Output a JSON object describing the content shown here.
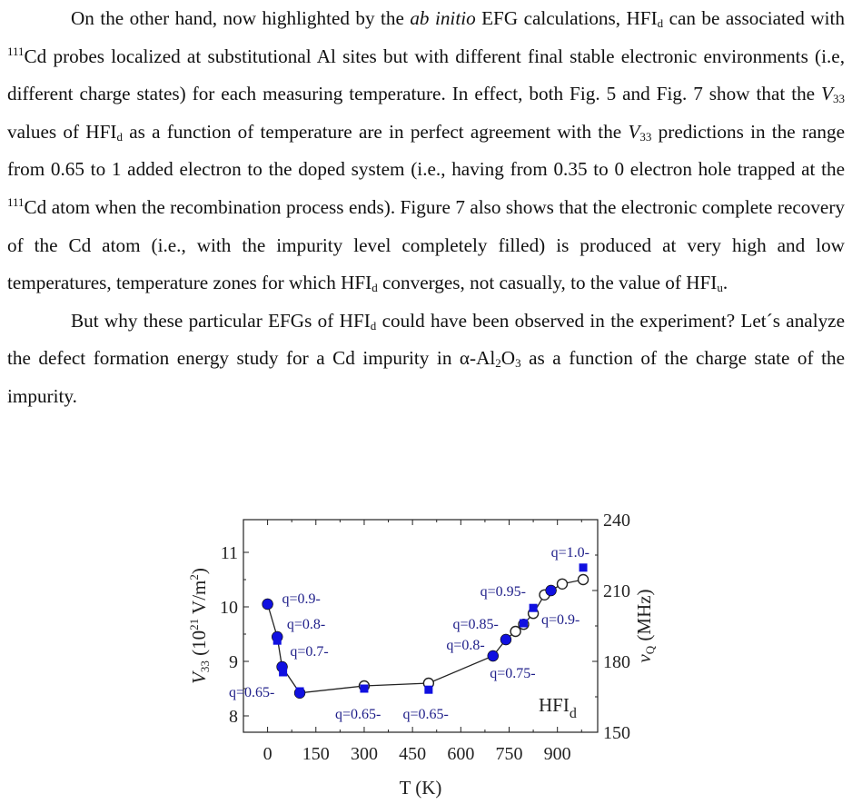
{
  "paragraph1": {
    "s1": "On the other hand, now highlighted by the ",
    "s2": "ab initio",
    "s3": " EFG calculations, HFI",
    "s4": "d",
    "s5": " can be associated with ",
    "s6": "111",
    "s7": "Cd probes localized at substitutional Al sites but with different final stable electronic environments (i.e, different charge states) for each measuring temperature. In effect, both Fig. 5 and Fig. 7 show that the ",
    "s8": "V",
    "s9": "33",
    "s10": " values of HFI",
    "s11": "d",
    "s12": " as a function of temperature are in perfect agreement with the ",
    "s13": "V",
    "s14": "33",
    "s15": " predictions in the range from 0.65 to 1 added electron to the doped system (i.e., having from 0.35 to 0 electron hole trapped at the ",
    "s16": "111",
    "s17": "Cd atom when the recombination process ends). Figure 7 also shows that the electronic complete recovery of the Cd atom (i.e., with the impurity level completely filled) is produced at very high and low temperatures, temperature zones for which HFI",
    "s18": "d",
    "s19": " converges, not casually, to the value of HFI",
    "s20": "u",
    "s21": "."
  },
  "paragraph2": {
    "s1": "But why these particular EFGs of HFI",
    "s2": "d",
    "s3": " could have been observed in the experiment? Let´s analyze the defect formation energy study for a Cd impurity in α-Al",
    "s4": "2",
    "s5": "O",
    "s6": "3",
    "s7": " as a function of the charge state of the impurity."
  },
  "chart_data": {
    "type": "scatter",
    "title": "",
    "xlabel": "T (K)",
    "ylabel_left": "V33 (10^21 V/m^2)",
    "ylabel_right": "νQ (MHz)",
    "xlim": [
      -75,
      1025
    ],
    "ylim_left": [
      7.7,
      11.6
    ],
    "ylim_right": [
      150,
      240
    ],
    "x_ticks": [
      0,
      150,
      300,
      450,
      600,
      750,
      900
    ],
    "y_left_ticks": [
      8,
      9,
      10,
      11
    ],
    "y_right_ticks": [
      150,
      180,
      210,
      240
    ],
    "inset_label": "HFI",
    "inset_label_sub": "d",
    "colors": {
      "experiment": "#1010e0",
      "labels": "#20208a",
      "axes": "#222222"
    },
    "series": [
      {
        "marker": "open-circle",
        "line": true,
        "points": [
          {
            "x": 0,
            "y": 10.05
          },
          {
            "x": 30,
            "y": 9.45
          },
          {
            "x": 45,
            "y": 8.9
          },
          {
            "x": 100,
            "y": 8.42
          },
          {
            "x": 300,
            "y": 8.55
          },
          {
            "x": 500,
            "y": 8.6
          },
          {
            "x": 700,
            "y": 9.1
          },
          {
            "x": 740,
            "y": 9.4
          },
          {
            "x": 770,
            "y": 9.55
          },
          {
            "x": 795,
            "y": 9.68
          },
          {
            "x": 825,
            "y": 9.88
          },
          {
            "x": 860,
            "y": 10.22
          },
          {
            "x": 880,
            "y": 10.3
          },
          {
            "x": 915,
            "y": 10.42
          },
          {
            "x": 980,
            "y": 10.5
          }
        ]
      },
      {
        "marker": "filled-circle",
        "points": [
          {
            "x": 0,
            "y": 10.05
          },
          {
            "x": 30,
            "y": 9.45
          },
          {
            "x": 45,
            "y": 8.9
          },
          {
            "x": 100,
            "y": 8.42
          },
          {
            "x": 700,
            "y": 9.1
          },
          {
            "x": 740,
            "y": 9.4
          },
          {
            "x": 880,
            "y": 10.3
          }
        ]
      },
      {
        "marker": "filled-square",
        "points": [
          {
            "x": 30,
            "y": 9.38
          },
          {
            "x": 48,
            "y": 8.8
          },
          {
            "x": 100,
            "y": 8.45
          },
          {
            "x": 300,
            "y": 8.5
          },
          {
            "x": 500,
            "y": 8.48
          },
          {
            "x": 795,
            "y": 9.7
          },
          {
            "x": 825,
            "y": 9.98
          },
          {
            "x": 980,
            "y": 10.72
          }
        ]
      }
    ],
    "annotations": [
      {
        "text": "q=0.9-",
        "x": 45,
        "y": 10.17
      },
      {
        "text": "q=0.8-",
        "x": 60,
        "y": 9.7
      },
      {
        "text": "q=0.7-",
        "x": 70,
        "y": 9.2
      },
      {
        "text": "q=0.65-",
        "x": -120,
        "y": 8.45
      },
      {
        "text": "q=0.65-",
        "x": 210,
        "y": 8.05
      },
      {
        "text": "q=0.65-",
        "x": 420,
        "y": 8.05
      },
      {
        "text": "q=0.75-",
        "x": 690,
        "y": 8.8
      },
      {
        "text": "q=0.8-",
        "x": 555,
        "y": 9.32
      },
      {
        "text": "q=0.85-",
        "x": 575,
        "y": 9.7
      },
      {
        "text": "q=0.95-",
        "x": 660,
        "y": 10.3
      },
      {
        "text": "q=0.9-",
        "x": 850,
        "y": 9.78
      },
      {
        "text": "q=1.0-",
        "x": 880,
        "y": 11.02
      }
    ]
  }
}
